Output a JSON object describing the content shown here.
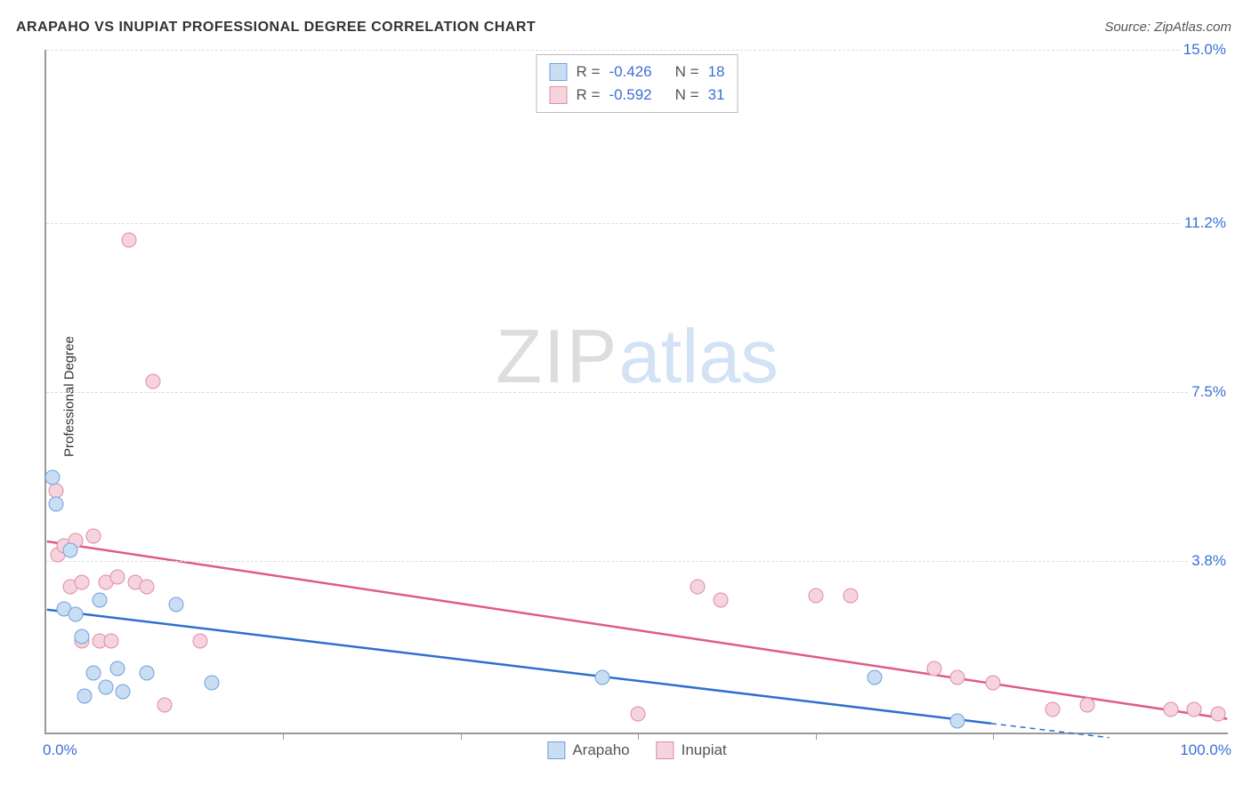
{
  "title": "ARAPAHO VS INUPIAT PROFESSIONAL DEGREE CORRELATION CHART",
  "source": "Source: ZipAtlas.com",
  "ylabel": "Professional Degree",
  "watermark": {
    "part1": "ZIP",
    "part2": "atlas"
  },
  "chart": {
    "type": "scatter",
    "background_color": "#ffffff",
    "grid_color": "#dddddd",
    "axis_color": "#999999",
    "tick_label_color": "#3b6fd6",
    "xlim": [
      0,
      100
    ],
    "ylim": [
      0,
      15
    ],
    "ytick_values": [
      3.8,
      7.5,
      11.2,
      15.0
    ],
    "ytick_labels": [
      "3.8%",
      "7.5%",
      "11.2%",
      "15.0%"
    ],
    "xtick_values": [
      20,
      35,
      50,
      65,
      80
    ],
    "xaxis_labels": {
      "left": "0.0%",
      "right": "100.0%"
    },
    "point_radius": 8.5,
    "series": [
      {
        "name": "Arapaho",
        "fill": "#c9ddf3",
        "stroke": "#6fa0e0",
        "line_color": "#2f6fd0",
        "line_width": 2.5,
        "r_value": "-0.426",
        "n_value": "18",
        "regression": {
          "x1": 0,
          "y1": 2.7,
          "x2": 80,
          "y2": 0.2,
          "dash_from_x": 80,
          "dash_to_x": 90
        },
        "points": [
          {
            "x": 0.5,
            "y": 5.6
          },
          {
            "x": 0.8,
            "y": 5.0
          },
          {
            "x": 1.5,
            "y": 2.7
          },
          {
            "x": 2.0,
            "y": 4.0
          },
          {
            "x": 2.5,
            "y": 2.6
          },
          {
            "x": 3.0,
            "y": 2.1
          },
          {
            "x": 3.2,
            "y": 0.8
          },
          {
            "x": 4.0,
            "y": 1.3
          },
          {
            "x": 4.5,
            "y": 2.9
          },
          {
            "x": 5.0,
            "y": 1.0
          },
          {
            "x": 6.0,
            "y": 1.4
          },
          {
            "x": 6.5,
            "y": 0.9
          },
          {
            "x": 8.5,
            "y": 1.3
          },
          {
            "x": 11.0,
            "y": 2.8
          },
          {
            "x": 14.0,
            "y": 1.1
          },
          {
            "x": 47.0,
            "y": 1.2
          },
          {
            "x": 70.0,
            "y": 1.2
          },
          {
            "x": 77.0,
            "y": 0.25
          }
        ]
      },
      {
        "name": "Inupiat",
        "fill": "#f6d4de",
        "stroke": "#e28aa4",
        "line_color": "#e05a8a",
        "line_width": 2.5,
        "r_value": "-0.592",
        "n_value": "31",
        "regression": {
          "x1": 0,
          "y1": 4.2,
          "x2": 100,
          "y2": 0.3
        },
        "points": [
          {
            "x": 0.8,
            "y": 5.3
          },
          {
            "x": 1.0,
            "y": 3.9
          },
          {
            "x": 1.5,
            "y": 4.1
          },
          {
            "x": 2.0,
            "y": 3.2
          },
          {
            "x": 2.5,
            "y": 4.2
          },
          {
            "x": 3.0,
            "y": 3.3
          },
          {
            "x": 3.0,
            "y": 2.0
          },
          {
            "x": 4.0,
            "y": 4.3
          },
          {
            "x": 4.5,
            "y": 2.0
          },
          {
            "x": 5.0,
            "y": 3.3
          },
          {
            "x": 5.5,
            "y": 2.0
          },
          {
            "x": 6.0,
            "y": 3.4
          },
          {
            "x": 7.0,
            "y": 10.8
          },
          {
            "x": 7.5,
            "y": 3.3
          },
          {
            "x": 8.5,
            "y": 3.2
          },
          {
            "x": 9.0,
            "y": 7.7
          },
          {
            "x": 10.0,
            "y": 0.6
          },
          {
            "x": 13.0,
            "y": 2.0
          },
          {
            "x": 50.0,
            "y": 0.4
          },
          {
            "x": 55.0,
            "y": 3.2
          },
          {
            "x": 57.0,
            "y": 2.9
          },
          {
            "x": 65.0,
            "y": 3.0
          },
          {
            "x": 68.0,
            "y": 3.0
          },
          {
            "x": 75.0,
            "y": 1.4
          },
          {
            "x": 77.0,
            "y": 1.2
          },
          {
            "x": 80.0,
            "y": 1.1
          },
          {
            "x": 85.0,
            "y": 0.5
          },
          {
            "x": 88.0,
            "y": 0.6
          },
          {
            "x": 95.0,
            "y": 0.5
          },
          {
            "x": 97.0,
            "y": 0.5
          },
          {
            "x": 99.0,
            "y": 0.4
          }
        ]
      }
    ],
    "stats_labels": {
      "r": "R =",
      "n": "N ="
    }
  }
}
